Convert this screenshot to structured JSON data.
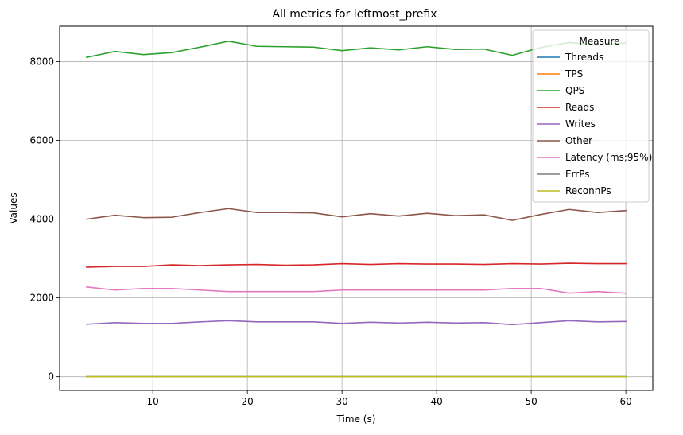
{
  "chart_data": {
    "type": "line",
    "title": "All metrics for leftmost_prefix",
    "xlabel": "Time (s)",
    "ylabel": "Values",
    "xlim": [
      0.15,
      62.85
    ],
    "ylim": [
      -350,
      8900
    ],
    "xticks": [
      10,
      20,
      30,
      40,
      50,
      60
    ],
    "yticks": [
      0,
      2000,
      4000,
      6000,
      8000
    ],
    "grid": true,
    "legend": {
      "title": "Measure",
      "placement": "top-right"
    },
    "x": [
      3,
      6,
      9,
      12,
      15,
      18,
      21,
      24,
      27,
      30,
      33,
      36,
      39,
      42,
      45,
      48,
      51,
      54,
      57,
      60
    ],
    "series": [
      {
        "name": "Threads",
        "color": "#1f77b4",
        "values": [
          0,
          0,
          0,
          0,
          0,
          0,
          0,
          0,
          0,
          0,
          0,
          0,
          0,
          0,
          0,
          0,
          0,
          0,
          0,
          0
        ]
      },
      {
        "name": "TPS",
        "color": "#ff7f0e",
        "values": [
          0,
          0,
          0,
          0,
          0,
          0,
          0,
          0,
          0,
          0,
          0,
          0,
          0,
          0,
          0,
          0,
          0,
          0,
          0,
          0
        ]
      },
      {
        "name": "QPS",
        "color": "#2ca02c",
        "values": [
          8110,
          8260,
          8180,
          8230,
          8370,
          8520,
          8390,
          8380,
          8370,
          8280,
          8350,
          8300,
          8380,
          8310,
          8320,
          8160,
          8360,
          8490,
          8420,
          8480
        ]
      },
      {
        "name": "Reads",
        "color": "#d62728",
        "values": [
          2780,
          2800,
          2800,
          2840,
          2820,
          2840,
          2850,
          2830,
          2840,
          2870,
          2850,
          2870,
          2860,
          2860,
          2850,
          2870,
          2860,
          2880,
          2870,
          2870
        ]
      },
      {
        "name": "Writes",
        "color": "#9467bd",
        "values": [
          1330,
          1370,
          1350,
          1350,
          1390,
          1420,
          1390,
          1390,
          1390,
          1350,
          1380,
          1360,
          1380,
          1360,
          1370,
          1320,
          1370,
          1420,
          1390,
          1400
        ]
      },
      {
        "name": "Other",
        "color": "#8c564b",
        "values": [
          4000,
          4100,
          4040,
          4050,
          4170,
          4270,
          4170,
          4170,
          4160,
          4060,
          4140,
          4080,
          4150,
          4090,
          4110,
          3970,
          4120,
          4250,
          4170,
          4220
        ]
      },
      {
        "name": "Latency (ms;95%)",
        "color": "#e377c2",
        "values": [
          2280,
          2200,
          2240,
          2240,
          2200,
          2160,
          2160,
          2160,
          2160,
          2200,
          2200,
          2200,
          2200,
          2200,
          2200,
          2240,
          2240,
          2120,
          2160,
          2120
        ]
      },
      {
        "name": "ErrPs",
        "color": "#7f7f7f",
        "values": [
          0,
          0,
          0,
          0,
          0,
          0,
          0,
          0,
          0,
          0,
          0,
          0,
          0,
          0,
          0,
          0,
          0,
          0,
          0,
          0
        ]
      },
      {
        "name": "ReconnPs",
        "color": "#bcbd22",
        "values": [
          0,
          0,
          0,
          0,
          0,
          0,
          0,
          0,
          0,
          0,
          0,
          0,
          0,
          0,
          0,
          0,
          0,
          0,
          0,
          0
        ]
      }
    ]
  }
}
